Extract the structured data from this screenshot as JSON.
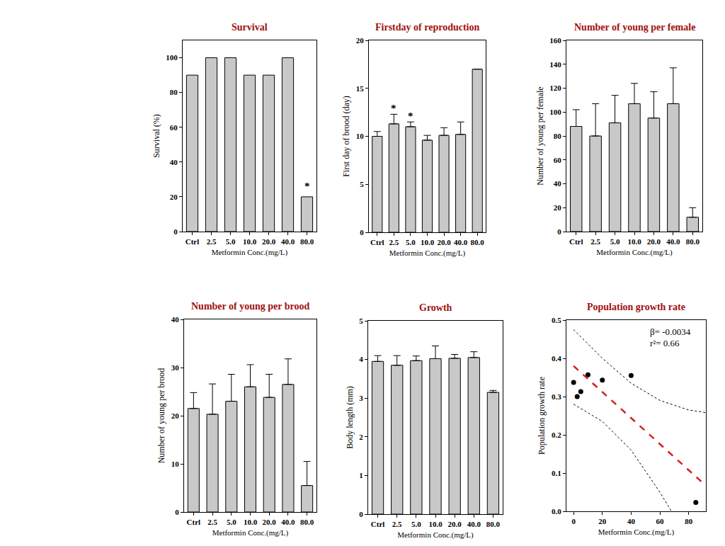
{
  "chart_data": [
    {
      "type": "bar",
      "title": "Survival",
      "x_label": "Metformin Conc.(mg/L)",
      "y_label": "Survival (%)",
      "categories": [
        "Ctrl",
        "2.5",
        "5.0",
        "10.0",
        "20.0",
        "40.0",
        "80.0"
      ],
      "values": [
        90,
        100,
        100,
        90,
        90,
        100,
        20
      ],
      "color": "#c8c8c8",
      "ylim": [
        0,
        110
      ],
      "yticks": [
        0,
        20,
        40,
        60,
        80,
        100
      ],
      "annotations": [
        {
          "text": "*",
          "x": 6,
          "y": 26
        }
      ]
    },
    {
      "type": "bar",
      "title": "Firstday of reproduction",
      "x_label": "Metformin Conc.(mg/L)",
      "y_label": "First day of brood (day)",
      "categories": [
        "Ctrl",
        "2.5",
        "5.0",
        "10.0",
        "20.0",
        "40.0",
        "80.0"
      ],
      "values": [
        10.0,
        11.3,
        11.0,
        9.6,
        10.1,
        10.2,
        17.0
      ],
      "errors": [
        0.5,
        1.0,
        0.5,
        0.5,
        0.8,
        1.3,
        0
      ],
      "color": "#c8c8c8",
      "ylim": [
        0,
        20
      ],
      "yticks": [
        0,
        5,
        10,
        15,
        20
      ],
      "annotations": [
        {
          "text": "*",
          "x": 1,
          "y": 12.9
        },
        {
          "text": "*",
          "x": 2,
          "y": 12.1
        }
      ]
    },
    {
      "type": "bar",
      "title": "Number of young per female",
      "x_label": "Metformin Conc.(mg/L)",
      "y_label": "Number of young per female",
      "categories": [
        "Ctrl",
        "2.5",
        "5.0",
        "10.0",
        "20.0",
        "40.0",
        "80.0"
      ],
      "values": [
        88,
        80,
        91,
        107,
        95,
        107,
        12
      ],
      "errors": [
        14,
        27,
        23,
        17,
        22,
        30,
        8
      ],
      "color": "#c8c8c8",
      "ylim": [
        0,
        160
      ],
      "yticks": [
        0,
        20,
        40,
        60,
        80,
        100,
        120,
        140,
        160
      ]
    },
    {
      "type": "bar",
      "title": "Number of young per brood",
      "x_label": "Metformin Conc.(mg/L)",
      "y_label": "Number of young per brood",
      "categories": [
        "Ctrl",
        "2.5",
        "5.0",
        "10.0",
        "20.0",
        "40.0",
        "80.0"
      ],
      "values": [
        21.5,
        20.3,
        23.0,
        26.0,
        23.8,
        26.5,
        5.5
      ],
      "errors": [
        3.3,
        6.3,
        5.6,
        4.6,
        4.8,
        5.3,
        5.0
      ],
      "color": "#c8c8c8",
      "ylim": [
        0,
        40
      ],
      "yticks": [
        0,
        10,
        20,
        30,
        40
      ]
    },
    {
      "type": "bar",
      "title": "Growth",
      "x_label": "Metformin Conc.(mg/L)",
      "y_label": "Body length (mm)",
      "categories": [
        "Ctrl",
        "2.5",
        "5.0",
        "10.0",
        "20.0",
        "40.0",
        "80.0"
      ],
      "values": [
        3.95,
        3.85,
        3.97,
        4.02,
        4.03,
        4.05,
        3.15
      ],
      "errors": [
        0.15,
        0.25,
        0.12,
        0.33,
        0.1,
        0.15,
        0.05
      ],
      "color": "#c8c8c8",
      "ylim": [
        0,
        5
      ],
      "yticks": [
        0,
        1,
        2,
        3,
        4,
        5
      ]
    },
    {
      "type": "scatter",
      "title": "Population growth rate",
      "x_label": "Metformin Conc.(mg/L)",
      "y_label": "Population growth rate",
      "xlim": [
        -5,
        92
      ],
      "xticks": [
        0,
        20,
        40,
        60,
        80
      ],
      "ylim": [
        0,
        0.5
      ],
      "yticks": [
        {
          "value": 0,
          "label": "0.0"
        },
        {
          "value": 0.1,
          "label": "0.1"
        },
        {
          "value": 0.2,
          "label": "0.2"
        },
        {
          "value": 0.3,
          "label": "0.3"
        },
        {
          "value": 0.4,
          "label": "0.4"
        },
        {
          "value": 0.5,
          "label": "0.5"
        }
      ],
      "series": [
        {
          "type": "scatter",
          "marker": "circle",
          "color": "#000000",
          "x": [
            0,
            2.5,
            5,
            10,
            20,
            40,
            85
          ],
          "values": [
            0.337,
            0.3,
            0.313,
            0.357,
            0.343,
            0.355,
            0.023
          ]
        },
        {
          "type": "line",
          "line_style": "dashed",
          "color": "#d62020",
          "x": [
            0,
            92
          ],
          "values": [
            0.38,
            0.067
          ]
        },
        {
          "type": "line",
          "line_style": "dotted",
          "color": "#000000",
          "x": [
            0,
            20,
            40,
            60,
            80,
            92
          ],
          "values": [
            0.475,
            0.4,
            0.335,
            0.29,
            0.265,
            0.258
          ]
        },
        {
          "type": "line",
          "line_style": "dotted",
          "color": "#000000",
          "x": [
            0,
            20,
            40,
            60,
            68
          ],
          "values": [
            0.28,
            0.235,
            0.16,
            0.05,
            0.0
          ]
        }
      ],
      "annotations": [
        {
          "text": "β= -0.0034",
          "x": 52,
          "y": 0.47
        },
        {
          "text": "r²= 0.66",
          "x": 52,
          "y": 0.44
        }
      ]
    }
  ]
}
